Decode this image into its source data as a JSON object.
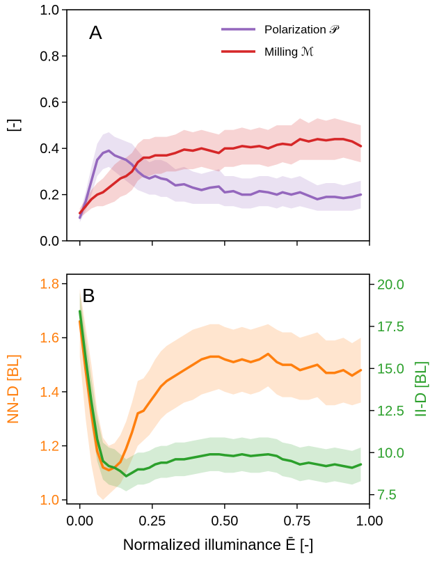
{
  "xlabel": "Normalized illuminance Ē [-]",
  "colors": {
    "polarization": "#9467bd",
    "milling": "#d62728",
    "nnd": "#ff7f0e",
    "iid": "#2ca02c",
    "axis": "#000000"
  },
  "chart_data": [
    {
      "panel": "A",
      "type": "line",
      "ylabel": "[-]",
      "xlim": [
        -0.045,
        1.0
      ],
      "ylim": [
        0.0,
        1.0
      ],
      "xticks": [
        0.0,
        0.25,
        0.5,
        0.75,
        1.0
      ],
      "xtick_labels_shown": false,
      "yticks": [
        0.0,
        0.2,
        0.4,
        0.6,
        0.8,
        1.0
      ],
      "ytick_labels": [
        "0.0",
        "0.2",
        "0.4",
        "0.6",
        "0.8",
        "1.0"
      ],
      "legend_position": "top-right",
      "series": [
        {
          "key": "polarization",
          "name": "Polarization 𝒫",
          "color": "#9467bd",
          "x": [
            0.0,
            0.02,
            0.04,
            0.06,
            0.08,
            0.1,
            0.12,
            0.14,
            0.16,
            0.18,
            0.2,
            0.22,
            0.24,
            0.26,
            0.28,
            0.3,
            0.33,
            0.36,
            0.39,
            0.42,
            0.45,
            0.48,
            0.5,
            0.53,
            0.56,
            0.59,
            0.62,
            0.65,
            0.68,
            0.7,
            0.73,
            0.76,
            0.79,
            0.82,
            0.85,
            0.88,
            0.91,
            0.94,
            0.97
          ],
          "y": [
            0.1,
            0.17,
            0.26,
            0.35,
            0.38,
            0.39,
            0.37,
            0.36,
            0.35,
            0.33,
            0.3,
            0.28,
            0.27,
            0.28,
            0.27,
            0.265,
            0.24,
            0.245,
            0.23,
            0.22,
            0.23,
            0.235,
            0.21,
            0.215,
            0.2,
            0.2,
            0.215,
            0.21,
            0.2,
            0.21,
            0.2,
            0.21,
            0.195,
            0.18,
            0.19,
            0.19,
            0.185,
            0.19,
            0.2
          ],
          "band_lower": [
            0.08,
            0.13,
            0.2,
            0.28,
            0.31,
            0.32,
            0.3,
            0.28,
            0.26,
            0.24,
            0.22,
            0.21,
            0.2,
            0.2,
            0.19,
            0.19,
            0.17,
            0.17,
            0.16,
            0.16,
            0.16,
            0.16,
            0.15,
            0.15,
            0.14,
            0.14,
            0.15,
            0.15,
            0.14,
            0.15,
            0.14,
            0.15,
            0.14,
            0.13,
            0.13,
            0.13,
            0.13,
            0.13,
            0.14
          ],
          "band_upper": [
            0.12,
            0.21,
            0.32,
            0.42,
            0.46,
            0.47,
            0.45,
            0.44,
            0.43,
            0.42,
            0.39,
            0.36,
            0.34,
            0.35,
            0.35,
            0.34,
            0.31,
            0.32,
            0.3,
            0.29,
            0.3,
            0.31,
            0.28,
            0.28,
            0.27,
            0.27,
            0.28,
            0.28,
            0.27,
            0.28,
            0.27,
            0.28,
            0.26,
            0.24,
            0.25,
            0.25,
            0.24,
            0.25,
            0.26
          ]
        },
        {
          "key": "milling",
          "name": "Milling ℳ",
          "color": "#d62728",
          "x": [
            0.0,
            0.02,
            0.04,
            0.06,
            0.08,
            0.1,
            0.12,
            0.14,
            0.16,
            0.18,
            0.2,
            0.22,
            0.24,
            0.26,
            0.28,
            0.3,
            0.33,
            0.36,
            0.39,
            0.42,
            0.45,
            0.48,
            0.5,
            0.53,
            0.56,
            0.59,
            0.62,
            0.65,
            0.68,
            0.7,
            0.73,
            0.76,
            0.79,
            0.82,
            0.85,
            0.88,
            0.91,
            0.94,
            0.97
          ],
          "y": [
            0.12,
            0.15,
            0.18,
            0.2,
            0.21,
            0.23,
            0.25,
            0.27,
            0.28,
            0.3,
            0.34,
            0.36,
            0.36,
            0.37,
            0.37,
            0.37,
            0.38,
            0.395,
            0.39,
            0.4,
            0.39,
            0.38,
            0.4,
            0.4,
            0.41,
            0.405,
            0.41,
            0.4,
            0.415,
            0.42,
            0.415,
            0.44,
            0.43,
            0.44,
            0.435,
            0.44,
            0.44,
            0.43,
            0.41
          ],
          "band_lower": [
            0.1,
            0.12,
            0.14,
            0.15,
            0.15,
            0.16,
            0.17,
            0.19,
            0.2,
            0.22,
            0.26,
            0.28,
            0.28,
            0.29,
            0.29,
            0.3,
            0.3,
            0.31,
            0.31,
            0.32,
            0.31,
            0.3,
            0.32,
            0.32,
            0.33,
            0.33,
            0.33,
            0.32,
            0.33,
            0.34,
            0.33,
            0.35,
            0.35,
            0.35,
            0.35,
            0.35,
            0.36,
            0.35,
            0.34
          ],
          "band_upper": [
            0.14,
            0.18,
            0.22,
            0.25,
            0.27,
            0.3,
            0.33,
            0.35,
            0.36,
            0.38,
            0.42,
            0.44,
            0.44,
            0.45,
            0.45,
            0.45,
            0.46,
            0.48,
            0.47,
            0.48,
            0.47,
            0.46,
            0.48,
            0.48,
            0.49,
            0.48,
            0.49,
            0.48,
            0.5,
            0.5,
            0.5,
            0.53,
            0.51,
            0.53,
            0.52,
            0.53,
            0.52,
            0.51,
            0.5
          ]
        }
      ]
    },
    {
      "panel": "B",
      "type": "line",
      "xlim": [
        -0.045,
        1.0
      ],
      "xticks": [
        0.0,
        0.25,
        0.5,
        0.75,
        1.0
      ],
      "xtick_labels": [
        "0.00",
        "0.25",
        "0.50",
        "0.75",
        "1.00"
      ],
      "left_axis": {
        "label": "NN-D [BL]",
        "color": "#ff7f0e",
        "lim": [
          0.985,
          1.835
        ],
        "ticks": [
          1.0,
          1.2,
          1.4,
          1.6,
          1.8
        ],
        "tick_labels": [
          "1.0",
          "1.2",
          "1.4",
          "1.6",
          "1.8"
        ]
      },
      "right_axis": {
        "label": "II-D [BL]",
        "color": "#2ca02c",
        "lim": [
          6.95,
          20.6
        ],
        "ticks": [
          7.5,
          10.0,
          12.5,
          15.0,
          17.5,
          20.0
        ],
        "tick_labels": [
          "7.5",
          "10.0",
          "12.5",
          "15.0",
          "17.5",
          "20.0"
        ]
      },
      "series": [
        {
          "key": "nnd",
          "axis": "left",
          "color": "#ff7f0e",
          "x": [
            0.0,
            0.02,
            0.04,
            0.06,
            0.08,
            0.1,
            0.12,
            0.14,
            0.16,
            0.18,
            0.2,
            0.22,
            0.24,
            0.26,
            0.28,
            0.3,
            0.33,
            0.36,
            0.39,
            0.42,
            0.45,
            0.48,
            0.5,
            0.53,
            0.56,
            0.59,
            0.62,
            0.65,
            0.68,
            0.7,
            0.73,
            0.76,
            0.79,
            0.82,
            0.85,
            0.88,
            0.91,
            0.94,
            0.97
          ],
          "y": [
            1.66,
            1.48,
            1.32,
            1.18,
            1.12,
            1.11,
            1.12,
            1.14,
            1.19,
            1.25,
            1.32,
            1.33,
            1.36,
            1.39,
            1.42,
            1.44,
            1.46,
            1.48,
            1.5,
            1.52,
            1.53,
            1.53,
            1.52,
            1.51,
            1.52,
            1.51,
            1.52,
            1.54,
            1.51,
            1.5,
            1.5,
            1.48,
            1.49,
            1.5,
            1.47,
            1.47,
            1.48,
            1.46,
            1.48
          ],
          "band_lower": [
            1.53,
            1.3,
            1.13,
            1.02,
            1.0,
            1.02,
            1.04,
            1.06,
            1.1,
            1.15,
            1.2,
            1.22,
            1.24,
            1.27,
            1.3,
            1.32,
            1.34,
            1.36,
            1.37,
            1.39,
            1.4,
            1.41,
            1.4,
            1.39,
            1.4,
            1.39,
            1.4,
            1.42,
            1.39,
            1.38,
            1.38,
            1.37,
            1.37,
            1.38,
            1.35,
            1.35,
            1.36,
            1.35,
            1.36
          ],
          "band_upper": [
            1.78,
            1.64,
            1.5,
            1.33,
            1.23,
            1.2,
            1.21,
            1.24,
            1.29,
            1.36,
            1.44,
            1.45,
            1.48,
            1.52,
            1.55,
            1.57,
            1.59,
            1.61,
            1.63,
            1.64,
            1.65,
            1.65,
            1.64,
            1.63,
            1.64,
            1.63,
            1.64,
            1.65,
            1.63,
            1.62,
            1.62,
            1.6,
            1.61,
            1.62,
            1.59,
            1.59,
            1.6,
            1.58,
            1.6
          ]
        },
        {
          "key": "iid",
          "axis": "right",
          "color": "#2ca02c",
          "x": [
            0.0,
            0.02,
            0.04,
            0.06,
            0.08,
            0.1,
            0.12,
            0.14,
            0.16,
            0.18,
            0.2,
            0.22,
            0.24,
            0.26,
            0.28,
            0.3,
            0.33,
            0.36,
            0.39,
            0.42,
            0.45,
            0.48,
            0.5,
            0.53,
            0.56,
            0.59,
            0.62,
            0.65,
            0.68,
            0.7,
            0.73,
            0.76,
            0.79,
            0.82,
            0.85,
            0.88,
            0.91,
            0.94,
            0.97
          ],
          "y": [
            18.4,
            15.6,
            13.0,
            10.8,
            9.5,
            9.2,
            9.1,
            8.9,
            8.6,
            8.8,
            9.0,
            9.0,
            9.1,
            9.3,
            9.4,
            9.4,
            9.6,
            9.6,
            9.7,
            9.8,
            9.9,
            9.9,
            9.85,
            9.8,
            9.9,
            9.8,
            9.85,
            9.9,
            9.8,
            9.6,
            9.5,
            9.3,
            9.4,
            9.3,
            9.2,
            9.3,
            9.2,
            9.1,
            9.3
          ],
          "band_lower": [
            17.3,
            14.3,
            11.6,
            9.5,
            8.4,
            8.1,
            8.0,
            7.9,
            7.7,
            7.9,
            8.1,
            8.1,
            8.2,
            8.4,
            8.5,
            8.5,
            8.6,
            8.6,
            8.7,
            8.8,
            8.9,
            8.9,
            8.8,
            8.8,
            8.9,
            8.8,
            8.8,
            8.9,
            8.8,
            8.6,
            8.5,
            8.3,
            8.4,
            8.3,
            8.2,
            8.3,
            8.2,
            8.1,
            8.3
          ],
          "band_upper": [
            19.5,
            16.9,
            14.4,
            12.1,
            10.6,
            10.3,
            10.2,
            9.9,
            9.6,
            9.8,
            10.0,
            10.0,
            10.1,
            10.3,
            10.4,
            10.4,
            10.6,
            10.6,
            10.7,
            10.8,
            10.9,
            10.9,
            10.9,
            10.8,
            10.9,
            10.8,
            10.9,
            10.9,
            10.8,
            10.6,
            10.5,
            10.3,
            10.4,
            10.3,
            10.2,
            10.3,
            10.2,
            10.1,
            10.3
          ]
        }
      ]
    }
  ]
}
